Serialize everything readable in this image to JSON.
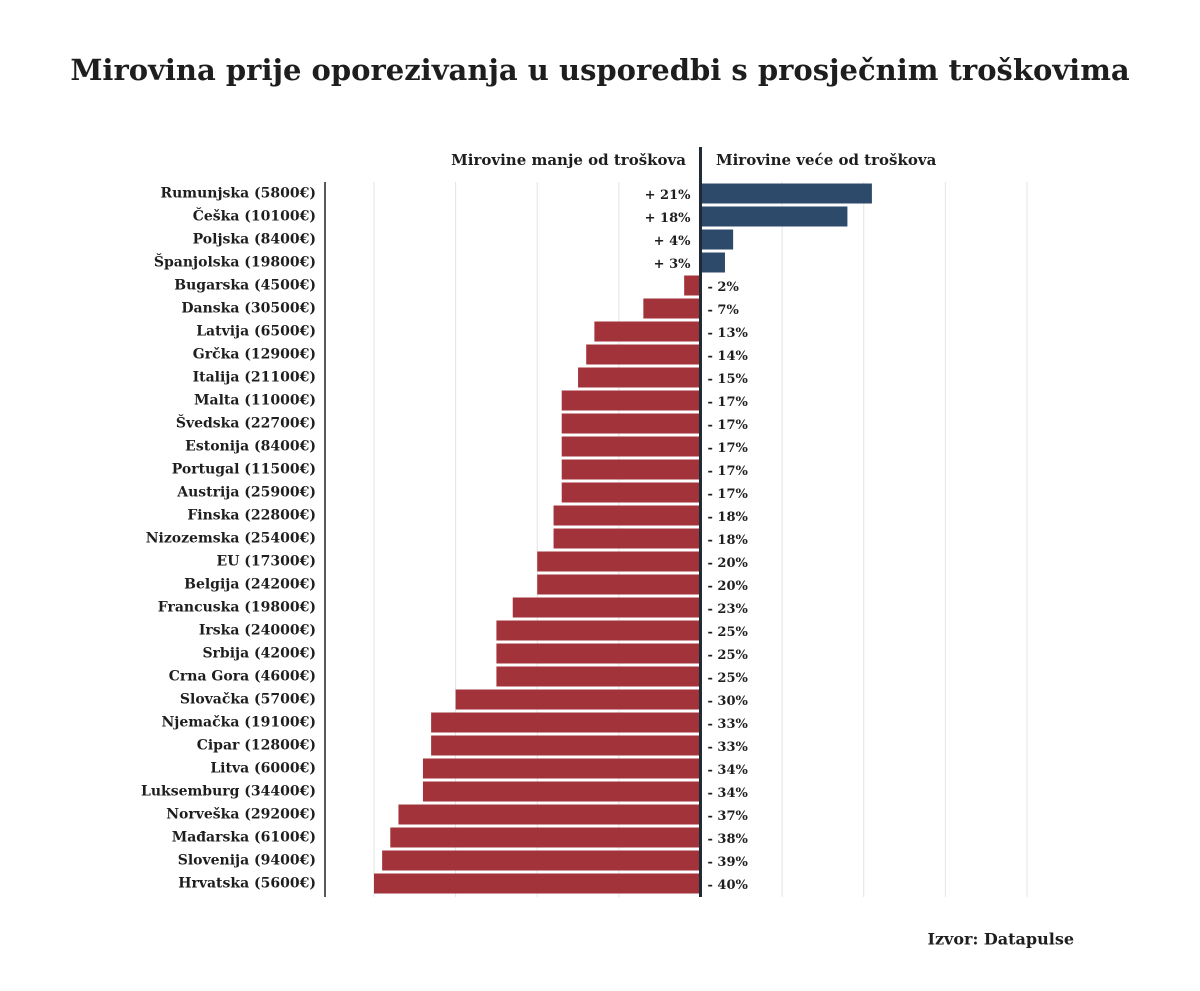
{
  "chart_data": {
    "type": "diverging-bar",
    "title": "Mirovina prije oporezivanja u usporedbi s prosječnim troškovima",
    "negative_heading": "Mirovine manje od troškova",
    "positive_heading": "Mirovine veće od troškova",
    "source": "Izvor: Datapulse",
    "categories": [
      "Rumunjska (5800€)",
      "Češka (10100€)",
      "Poljska (8400€)",
      "Španjolska (19800€)",
      "Bugarska (4500€)",
      "Danska (30500€)",
      "Latvija (6500€)",
      "Grčka (12900€)",
      "Italija (21100€)",
      "Malta (11000€)",
      "Švedska (22700€)",
      "Estonija (8400€)",
      "Portugal (11500€)",
      "Austrija (25900€)",
      "Finska (22800€)",
      "Nizozemska (25400€)",
      "EU (17300€)",
      "Belgija (24200€)",
      "Francuska (19800€)",
      "Irska (24000€)",
      "Srbija (4200€)",
      "Crna Gora (4600€)",
      "Slovačka (5700€)",
      "Njemačka (19100€)",
      "Cipar (12800€)",
      "Litva (6000€)",
      "Luksemburg (34400€)",
      "Norveška (29200€)",
      "Mađarska (6100€)",
      "Slovenija (9400€)",
      "Hrvatska (5600€)"
    ],
    "values": [
      21,
      18,
      4,
      3,
      -2,
      -7,
      -13,
      -14,
      -15,
      -17,
      -17,
      -17,
      -17,
      -17,
      -18,
      -18,
      -20,
      -20,
      -23,
      -25,
      -25,
      -25,
      -30,
      -33,
      -33,
      -34,
      -34,
      -37,
      -38,
      -39,
      -40
    ],
    "value_labels": [
      "+ 21%",
      "+ 18%",
      "+ 4%",
      "+ 3%",
      "- 2%",
      "- 7%",
      "- 13%",
      "- 14%",
      "- 15%",
      "- 17%",
      "- 17%",
      "- 17%",
      "- 17%",
      "- 17%",
      "- 18%",
      "- 18%",
      "- 20%",
      "- 20%",
      "- 23%",
      "- 25%",
      "- 25%",
      "- 25%",
      "- 30%",
      "- 33%",
      "- 33%",
      "- 34%",
      "- 34%",
      "- 37%",
      "- 38%",
      "- 39%",
      "- 40%"
    ],
    "color_positive": "#2e4a6b",
    "color_negative": "#a3333a",
    "xlim": [
      -46,
      40
    ],
    "xticks": [
      -40,
      -30,
      -20,
      -10,
      10,
      20,
      30,
      40
    ],
    "grid": true
  }
}
